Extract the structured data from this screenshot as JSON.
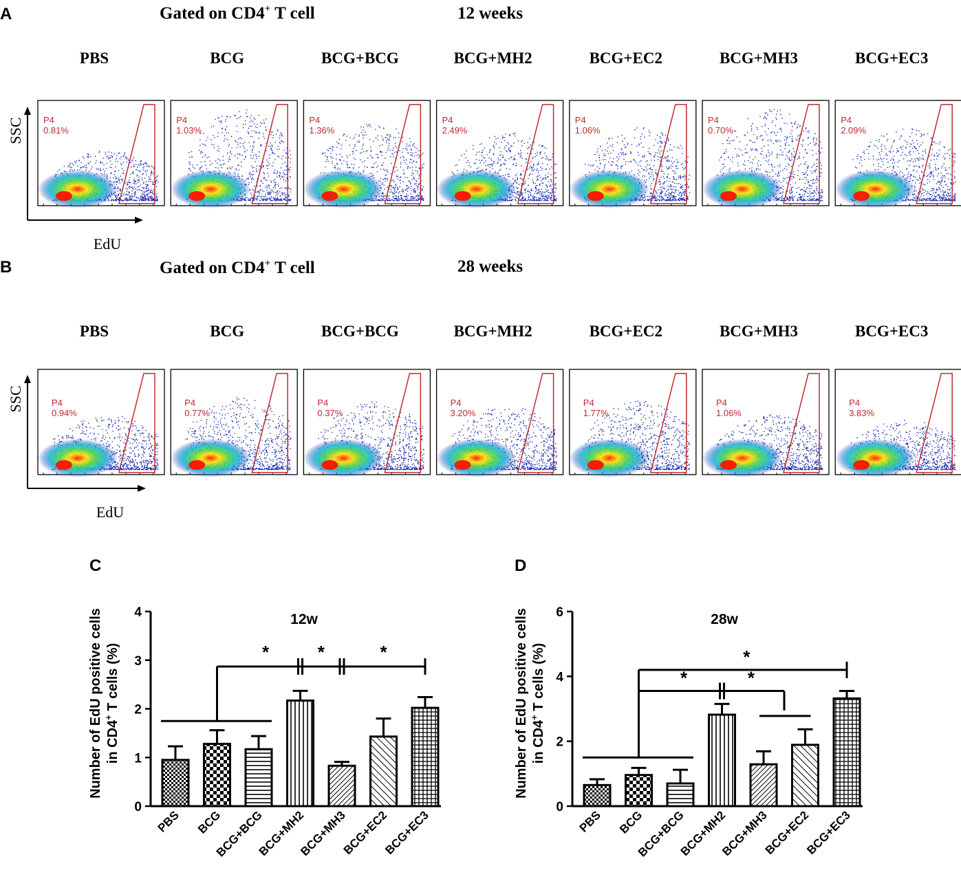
{
  "panels": {
    "A": {
      "letter": "A",
      "gate_title": "Gated on CD4",
      "gate_sup": "+",
      "gate_suffix": " T cell",
      "timepoint": "12 weeks",
      "y_label": "SSC",
      "x_label": "EdU",
      "plots": [
        {
          "name": "PBS",
          "gate": "P4",
          "percent": "0.81%",
          "percent_value": 0.81,
          "spread": 0.55
        },
        {
          "name": "BCG",
          "gate": "P4",
          "percent": "1.03%",
          "percent_value": 1.03,
          "spread": 1.0
        },
        {
          "name": "BCG+BCG",
          "gate": "P4",
          "percent": "1.36%",
          "percent_value": 1.36,
          "spread": 0.85
        },
        {
          "name": "BCG+MH2",
          "gate": "P4",
          "percent": "2.49%",
          "percent_value": 2.49,
          "spread": 0.75
        },
        {
          "name": "BCG+EC2",
          "gate": "P4",
          "percent": "1.06%",
          "percent_value": 1.06,
          "spread": 0.8
        },
        {
          "name": "BCG+MH3",
          "gate": "P4",
          "percent": "0.70%",
          "percent_value": 0.7,
          "spread": 1.0
        },
        {
          "name": "BCG+EC3",
          "gate": "P4",
          "percent": "2.09%",
          "percent_value": 2.09,
          "spread": 0.8
        }
      ]
    },
    "B": {
      "letter": "B",
      "gate_title": "Gated on CD4",
      "gate_sup": "+",
      "gate_suffix": " T cell",
      "timepoint": "28 weeks",
      "y_label": "SSC",
      "x_label": "EdU",
      "plots": [
        {
          "name": "PBS",
          "gate": "P4",
          "percent": "0.94%",
          "percent_value": 0.94,
          "spread": 0.6
        },
        {
          "name": "BCG",
          "gate": "P4",
          "percent": "0.77%",
          "percent_value": 0.77,
          "spread": 0.8
        },
        {
          "name": "BCG+BCG",
          "gate": "P4",
          "percent": "0.37%",
          "percent_value": 0.37,
          "spread": 0.75
        },
        {
          "name": "BCG+MH2",
          "gate": "P4",
          "percent": "3.20%",
          "percent_value": 3.2,
          "spread": 0.7
        },
        {
          "name": "BCG+EC2",
          "gate": "P4",
          "percent": "1.77%",
          "percent_value": 1.77,
          "spread": 0.75
        },
        {
          "name": "BCG+MH3",
          "gate": "P4",
          "percent": "1.06%",
          "percent_value": 1.06,
          "spread": 0.6
        },
        {
          "name": "BCG+EC3",
          "gate": "P4",
          "percent": "3.83%",
          "percent_value": 3.83,
          "spread": 0.55
        }
      ]
    },
    "C": {
      "letter": "C"
    },
    "D": {
      "letter": "D"
    }
  },
  "chart_data": [
    {
      "type": "bar",
      "panel": "C",
      "title": "12w",
      "ylabel_line1": "Number of  EdU positive cells",
      "ylabel_line2_pre": "in CD4",
      "ylabel_line2_sup": "+",
      "ylabel_line2_post": " T cells (%)",
      "categories": [
        "PBS",
        "BCG",
        "BCG+BCG",
        "BCG+MH2",
        "BCG+MH3",
        "BCG+EC2",
        "BCG+EC3"
      ],
      "patterns": [
        "checker-dense",
        "checker",
        "hlines",
        "vlines",
        "diag-fine",
        "diag",
        "grid"
      ],
      "values": [
        0.95,
        1.28,
        1.17,
        2.17,
        0.83,
        1.43,
        2.02
      ],
      "errors": [
        0.28,
        0.28,
        0.27,
        0.2,
        0.08,
        0.37,
        0.22
      ],
      "ylim": [
        0,
        4
      ],
      "yticks": [
        0,
        1,
        2,
        3,
        4
      ],
      "ytick_labels": [
        "0",
        "1",
        "2",
        "3",
        "4"
      ],
      "annotations": [
        {
          "text": "*",
          "comparison": "PBS/BCG/BCG+BCG vs BCG+MH2"
        },
        {
          "text": "*",
          "comparison": "BCG+MH2 vs BCG+MH3"
        },
        {
          "text": "*",
          "comparison": "BCG+MH3 vs BCG+EC3"
        }
      ]
    },
    {
      "type": "bar",
      "panel": "D",
      "title": "28w",
      "ylabel_line1": "Number of  EdU positive cells",
      "ylabel_line2_pre": "in CD4",
      "ylabel_line2_sup": "+",
      "ylabel_line2_post": " T cells (%)",
      "categories": [
        "PBS",
        "BCG",
        "BCG+BCG",
        "BCG+MH2",
        "BCG+MH3",
        "BCG+EC2",
        "BCG+EC3"
      ],
      "patterns": [
        "checker-dense",
        "checker",
        "hlines",
        "vlines",
        "diag-fine",
        "diag",
        "grid"
      ],
      "values": [
        0.65,
        0.96,
        0.7,
        2.82,
        1.29,
        1.89,
        3.32
      ],
      "errors": [
        0.18,
        0.22,
        0.42,
        0.33,
        0.4,
        0.48,
        0.23
      ],
      "ylim": [
        0,
        6
      ],
      "yticks": [
        0,
        2,
        4,
        6
      ],
      "ytick_labels": [
        "0",
        "2",
        "4",
        "6"
      ],
      "annotations": [
        {
          "text": "*",
          "comparison": "PBS/BCG/BCG+BCG vs BCG+EC3"
        },
        {
          "text": "*",
          "comparison": "PBS/BCG/BCG+BCG vs BCG+MH2"
        },
        {
          "text": "*",
          "comparison": "BCG+MH2 vs BCG+MH3/BCG+EC2"
        }
      ]
    }
  ],
  "colors": {
    "gate": "#c0282d",
    "dots": "#1a2fb0",
    "text": "#000000"
  }
}
